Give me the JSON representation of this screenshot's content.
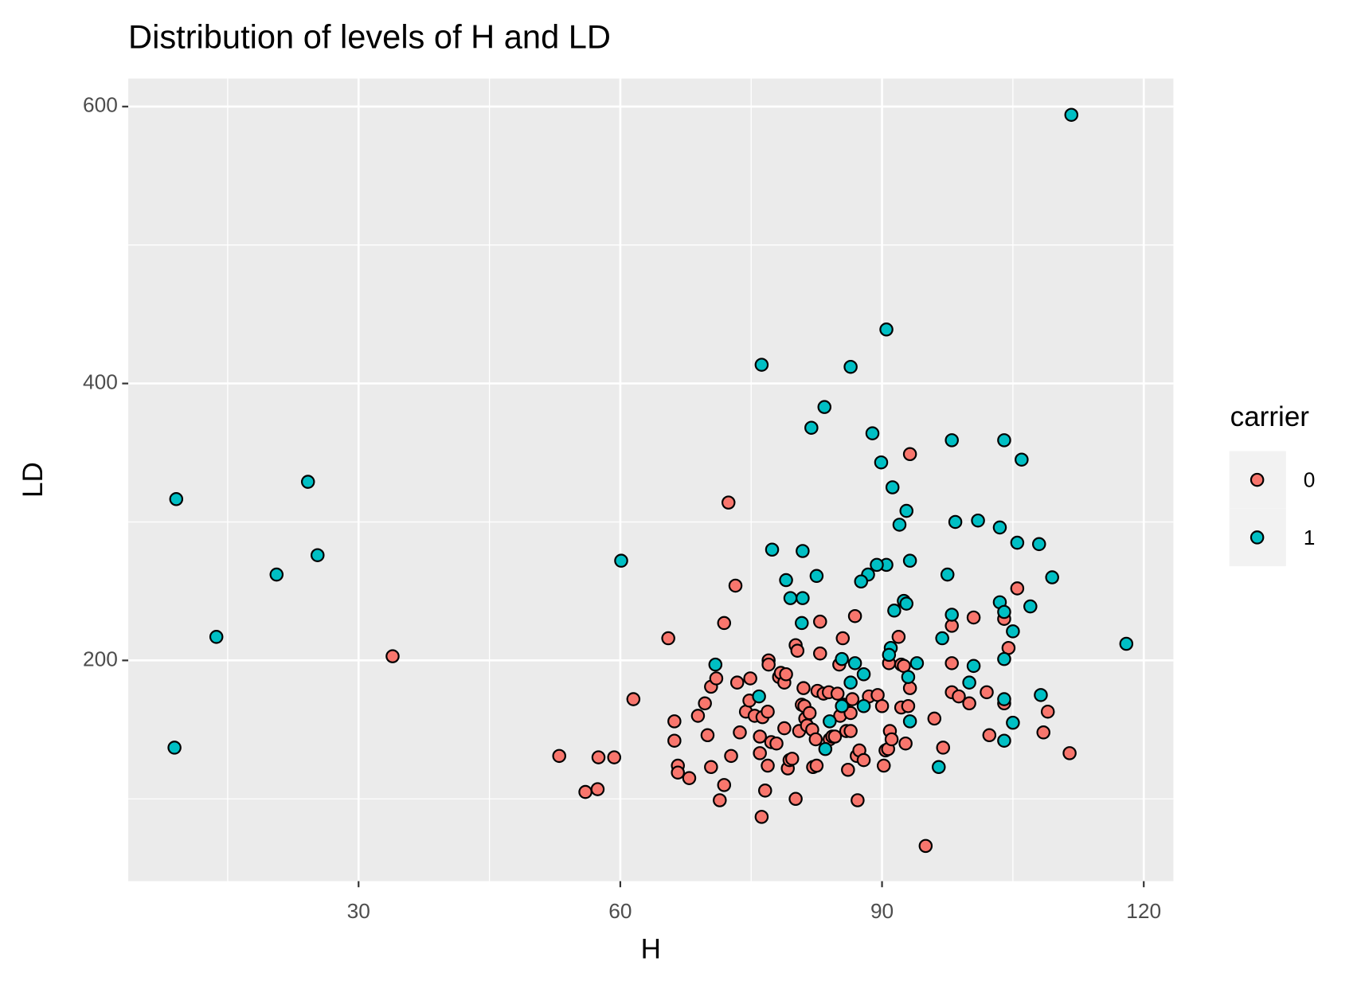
{
  "chart_data": {
    "type": "scatter",
    "title": "Distribution of levels of H and LD",
    "x_label": "H",
    "y_label": "LD",
    "legend_title": "carrier",
    "legend_position": "right",
    "grid": true,
    "xlim": [
      3.6,
      123.4
    ],
    "ylim": [
      40.6,
      620.2
    ],
    "xticks": [
      30,
      60,
      90,
      120
    ],
    "yticks": [
      200,
      400,
      600
    ],
    "minor_xticks": [
      15,
      45,
      75,
      105
    ],
    "minor_yticks": [
      100,
      300,
      500
    ],
    "series": [
      {
        "name": "0",
        "color": "#F8766D",
        "x": [
          33.9,
          72.4,
          73.2,
          71.9,
          65.5,
          61.5,
          53,
          57.5,
          59.3,
          56,
          57.4,
          66.2,
          66.2,
          66.6,
          66.6,
          67.9,
          68.9,
          69.7,
          70,
          70.4,
          70.4,
          71,
          71.4,
          71.9,
          72.7,
          73.4,
          73.7,
          74.4,
          74.9,
          74.8,
          75.4,
          76,
          76,
          76.3,
          76.2,
          76.6,
          76.9,
          76.9,
          77,
          77,
          77.3,
          77.9,
          78.2,
          78.4,
          78.8,
          78.8,
          79,
          79.2,
          79.4,
          79.7,
          80.1,
          80.1,
          80.3,
          80.5,
          80.8,
          81,
          81.1,
          81.2,
          81.4,
          81.7,
          82,
          82.1,
          82.4,
          82.5,
          82.6,
          82.9,
          82.9,
          83.3,
          83.9,
          84,
          84.3,
          84.6,
          84.9,
          85.1,
          85.2,
          85.5,
          85.6,
          85.9,
          86.1,
          86.4,
          86.4,
          86.6,
          86.9,
          87.1,
          87.2,
          87.4,
          87.9,
          88.5,
          89.5,
          90,
          90.2,
          90.4,
          90.7,
          90.9,
          90.8,
          91.1,
          91.9,
          92.2,
          92.2,
          92.5,
          92.7,
          93,
          93.2,
          93.2,
          95,
          96,
          97,
          98,
          98,
          98,
          98.8,
          100,
          100.5,
          102,
          102.3,
          104,
          104,
          104.5,
          105.5,
          108.5,
          109,
          111.5
        ],
        "values": [
          203,
          314,
          254,
          227,
          216,
          172,
          131,
          130,
          130,
          105,
          107,
          156,
          142,
          124,
          119,
          115,
          160,
          169,
          146,
          123,
          181,
          187,
          99,
          110,
          131,
          184,
          148,
          163,
          187,
          171,
          160,
          145,
          133,
          159,
          87,
          106,
          163,
          124,
          200,
          197,
          141,
          140,
          188,
          191,
          151,
          184,
          190,
          122,
          128,
          129,
          100,
          211,
          207,
          149,
          168,
          180,
          167,
          158,
          153,
          162,
          150,
          123,
          143,
          124,
          178,
          228,
          205,
          176,
          177,
          143,
          145,
          145,
          176,
          197,
          160,
          216,
          168,
          149,
          121,
          149,
          162,
          172,
          232,
          131,
          99,
          135,
          128,
          174,
          175,
          167,
          124,
          135,
          136,
          149,
          198,
          143,
          217,
          197,
          166,
          196,
          140,
          167,
          180,
          349,
          66,
          158,
          137,
          225,
          198,
          177,
          174,
          169,
          231,
          177,
          146,
          230,
          169,
          209,
          252,
          148,
          163,
          133
        ]
      },
      {
        "name": "1",
        "color": "#00BFC4",
        "x": [
          9.1,
          8.9,
          13.7,
          20.6,
          24.2,
          25.3,
          60.1,
          111.7,
          118,
          76.2,
          86.4,
          90.5,
          83.4,
          81.9,
          88.9,
          89.9,
          91.2,
          92.8,
          92,
          98,
          104,
          106,
          98.4,
          101,
          103.5,
          105.5,
          108,
          109.5,
          107,
          105,
          103.5,
          104,
          97.5,
          93.2,
          90.5,
          89.4,
          88.4,
          87.6,
          77.4,
          80.9,
          82.5,
          79,
          79.5,
          80.9,
          80.8,
          92.5,
          92.8,
          91.4,
          98,
          96.9,
          91,
          90.8,
          94,
          100.5,
          104,
          100,
          93,
          93.2,
          104,
          104,
          105,
          108.2,
          70.9,
          75.9,
          85.4,
          86.9,
          87.9,
          86.4,
          85.4,
          87.9,
          84,
          83.5,
          96.5
        ],
        "values": [
          316.5,
          137,
          217,
          262,
          329,
          276,
          272,
          594,
          212,
          413.5,
          412,
          439,
          383,
          368,
          364,
          343,
          325,
          308,
          298,
          359,
          359,
          345,
          300,
          301,
          296,
          285,
          284,
          260,
          239,
          221,
          242,
          235,
          262,
          272,
          269,
          269,
          262,
          257,
          280,
          279,
          261,
          258,
          245,
          245,
          227,
          243,
          241,
          236,
          233,
          216,
          209,
          204,
          198,
          196,
          201,
          184,
          188,
          156,
          172,
          142,
          155,
          175,
          197,
          174,
          201,
          198,
          190,
          184,
          167,
          167,
          156,
          136,
          123
        ]
      }
    ]
  }
}
